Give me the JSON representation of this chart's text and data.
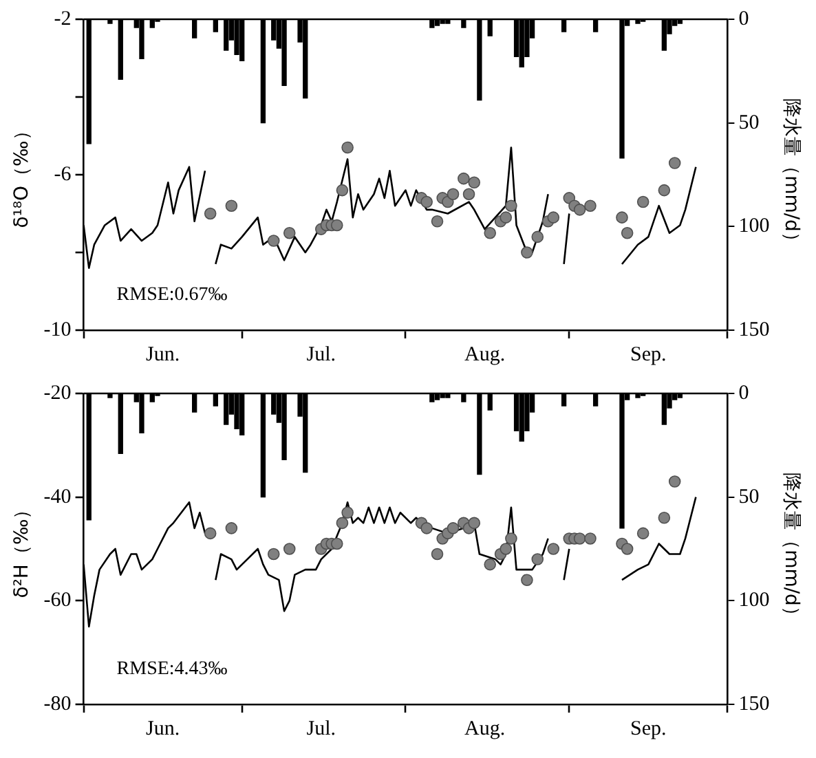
{
  "chart_data": [
    {
      "type": "line",
      "ylabel": "δ¹⁸O（‰）",
      "y2label": "降水量（mm/d）",
      "annotations": [
        "RMSE:0.67‰"
      ],
      "xlim": [
        "--06-01",
        "--10-01"
      ],
      "xticks": [
        {
          "value": "--06-01",
          "label": null
        },
        {
          "value": "--06-16",
          "label": "Jun."
        },
        {
          "value": "--07-01",
          "label": null
        },
        {
          "value": "--07-16",
          "label": "Jul."
        },
        {
          "value": "--08-01",
          "label": null
        },
        {
          "value": "--08-16",
          "label": "Aug."
        },
        {
          "value": "--09-01",
          "label": null
        },
        {
          "value": "--09-16",
          "label": "Sep."
        },
        {
          "value": "--10-01",
          "label": null
        }
      ],
      "ylim": [
        -10,
        -2
      ],
      "yticks": [
        -10,
        {
          "value": -8,
          "label": null
        },
        -6,
        {
          "value": -4,
          "label": null
        },
        -2
      ],
      "y2lim": [
        150,
        0
      ],
      "y2ticks": [
        0,
        50,
        100,
        150
      ],
      "line_style": "solid",
      "series": [
        {
          "type": "bar",
          "axis": "y2",
          "color": "#000000",
          "x": [
            "--06-02",
            "--06-06",
            "--06-08",
            "--06-11",
            "--06-12",
            "--06-14",
            "--06-15",
            "--06-22",
            "--06-26",
            "--06-28",
            "--06-29",
            "--06-30",
            "--07-01",
            "--07-05",
            "--07-07",
            "--07-08",
            "--07-09",
            "--07-12",
            "--07-13",
            "--08-06",
            "--08-07",
            "--08-08",
            "--08-09",
            "--08-12",
            "--08-15",
            "--08-17",
            "--08-22",
            "--08-23",
            "--08-24",
            "--08-25",
            "--08-31",
            "--09-06",
            "--09-11",
            "--09-12",
            "--09-14",
            "--09-15",
            "--09-19",
            "--09-20",
            "--09-21",
            "--09-22"
          ],
          "values": [
            60,
            2,
            29,
            4,
            19,
            4,
            1,
            9,
            6,
            15,
            10,
            17,
            20,
            50,
            10,
            14,
            32,
            11,
            38,
            4,
            3,
            2,
            2,
            4,
            39,
            8,
            18,
            23,
            18,
            9,
            6,
            6,
            67,
            3,
            2,
            1,
            15,
            7,
            3,
            2
          ]
        },
        {
          "color": "#000000",
          "x": [
            "--06-01",
            "--06-02",
            "--06-03",
            "--06-05",
            "--06-07",
            "--06-08",
            "--06-10",
            "--06-12",
            "--06-14",
            "--06-15",
            "--06-17",
            "--06-18",
            "--06-19",
            "--06-21",
            "--06-22",
            "--06-24",
            "--06-25",
            "--06-26",
            "--06-27",
            "--06-29",
            "--07-01",
            "--07-04",
            "--07-05",
            "--07-07",
            "--07-09",
            "--07-11",
            "--07-13",
            "--07-14",
            "--07-16",
            "--07-17",
            "--07-18",
            "--07-19",
            "--07-21",
            "--07-22",
            "--07-23",
            "--07-24",
            "--07-26",
            "--07-27",
            "--07-28",
            "--07-29",
            "--07-30",
            "--08-01",
            "--08-02",
            "--08-03",
            "--08-05",
            "--08-06",
            "--08-09",
            "--08-13",
            "--08-14",
            "--08-16",
            "--08-18",
            "--08-20",
            "--08-21",
            "--08-22",
            "--08-24",
            "--08-25",
            "--08-27",
            "--08-28",
            "--08-30",
            "--08-31",
            "--09-01",
            "--09-06",
            "--09-11",
            "--09-14",
            "--09-16",
            "--09-18",
            "--09-20",
            "--09-22",
            "--09-23",
            "--09-25"
          ],
          "values": [
            -7.3,
            -8.4,
            -7.8,
            -7.3,
            -7.1,
            -7.7,
            -7.4,
            -7.7,
            -7.5,
            -7.3,
            -6.2,
            -7.0,
            -6.4,
            -5.8,
            -7.2,
            -5.9,
            null,
            -8.3,
            -7.8,
            -7.9,
            -7.6,
            -7.1,
            -7.8,
            -7.6,
            -8.2,
            -7.6,
            -8.0,
            -7.8,
            -7.3,
            -6.9,
            -7.2,
            -6.7,
            -5.6,
            -7.1,
            -6.5,
            -6.9,
            -6.5,
            -6.1,
            -6.6,
            -5.9,
            -6.8,
            -6.4,
            -6.8,
            -6.4,
            -6.9,
            -6.9,
            -7.0,
            -6.7,
            -6.9,
            -7.4,
            -7.1,
            -6.8,
            -5.3,
            -7.3,
            -8.0,
            -8.0,
            -7.2,
            -6.5,
            null,
            -8.3,
            -7.0,
            null,
            -8.3,
            -7.8,
            -7.6,
            -6.8,
            -7.5,
            -7.3,
            -6.9,
            -5.8
          ]
        },
        {
          "type": "scatter",
          "marker": "circle",
          "color": "#808080",
          "x": [
            "--06-25",
            "--06-29",
            "--07-07",
            "--07-10",
            "--07-16",
            "--07-17",
            "--07-18",
            "--07-19",
            "--07-20",
            "--07-21",
            "--08-04",
            "--08-05",
            "--08-07",
            "--08-08",
            "--08-09",
            "--08-10",
            "--08-12",
            "--08-13",
            "--08-14",
            "--08-17",
            "--08-19",
            "--08-20",
            "--08-21",
            "--08-24",
            "--08-26",
            "--08-28",
            "--08-29",
            "--09-01",
            "--09-02",
            "--09-03",
            "--09-05",
            "--09-11",
            "--09-12",
            "--09-15",
            "--09-19",
            "--09-21"
          ],
          "values": [
            -7.0,
            -6.8,
            -7.7,
            -7.5,
            -7.4,
            -7.3,
            -7.3,
            -7.3,
            -6.4,
            -5.3,
            -6.6,
            -6.7,
            -7.2,
            -6.6,
            -6.7,
            -6.5,
            -6.1,
            -6.5,
            -6.2,
            -7.5,
            -7.2,
            -7.1,
            -6.8,
            -8.0,
            -7.6,
            -7.2,
            -7.1,
            -6.6,
            -6.8,
            -6.9,
            -6.8,
            -7.1,
            -7.5,
            -6.7,
            -6.4,
            -5.7
          ]
        }
      ]
    },
    {
      "type": "line",
      "ylabel": "δ²H（‰）",
      "y2label": "降水量（mm/d）",
      "annotations": [
        "RMSE:4.43‰"
      ],
      "xlim": [
        "--06-01",
        "--10-01"
      ],
      "xticks": [
        {
          "value": "--06-01",
          "label": null
        },
        {
          "value": "--06-16",
          "label": "Jun."
        },
        {
          "value": "--07-01",
          "label": null
        },
        {
          "value": "--07-16",
          "label": "Jul."
        },
        {
          "value": "--08-01",
          "label": null
        },
        {
          "value": "--08-16",
          "label": "Aug."
        },
        {
          "value": "--09-01",
          "label": null
        },
        {
          "value": "--09-16",
          "label": "Sep."
        },
        {
          "value": "--10-01",
          "label": null
        }
      ],
      "ylim": [
        -80,
        -20
      ],
      "yticks": [
        -80,
        -60,
        -40,
        -20
      ],
      "y2lim": [
        150,
        0
      ],
      "y2ticks": [
        0,
        50,
        100,
        150
      ],
      "line_style": "solid",
      "series": [
        {
          "type": "bar",
          "axis": "y2",
          "color": "#000000",
          "x": [
            "--06-02",
            "--06-06",
            "--06-08",
            "--06-11",
            "--06-12",
            "--06-14",
            "--06-15",
            "--06-22",
            "--06-26",
            "--06-28",
            "--06-29",
            "--06-30",
            "--07-01",
            "--07-05",
            "--07-07",
            "--07-08",
            "--07-09",
            "--07-12",
            "--07-13",
            "--08-06",
            "--08-07",
            "--08-08",
            "--08-09",
            "--08-12",
            "--08-15",
            "--08-17",
            "--08-22",
            "--08-23",
            "--08-24",
            "--08-25",
            "--08-31",
            "--09-06",
            "--09-11",
            "--09-12",
            "--09-14",
            "--09-15",
            "--09-19",
            "--09-20",
            "--09-21",
            "--09-22"
          ],
          "values": [
            61,
            2,
            29,
            4,
            19,
            4,
            1,
            9,
            6,
            15,
            10,
            17,
            20,
            50,
            10,
            14,
            32,
            11,
            38,
            4,
            3,
            2,
            2,
            4,
            39,
            8,
            18,
            23,
            18,
            9,
            6,
            6,
            65,
            3,
            2,
            1,
            15,
            7,
            3,
            2
          ]
        },
        {
          "color": "#000000",
          "x": [
            "--06-01",
            "--06-02",
            "--06-03",
            "--06-04",
            "--06-06",
            "--06-07",
            "--06-08",
            "--06-10",
            "--06-11",
            "--06-12",
            "--06-14",
            "--06-15",
            "--06-17",
            "--06-18",
            "--06-21",
            "--06-22",
            "--06-23",
            "--06-24",
            "--06-25",
            "--06-26",
            "--06-27",
            "--06-29",
            "--06-30",
            "--07-02",
            "--07-04",
            "--07-05",
            "--07-06",
            "--07-08",
            "--07-09",
            "--07-10",
            "--07-11",
            "--07-13",
            "--07-15",
            "--07-16",
            "--07-18",
            "--07-20",
            "--07-21",
            "--07-22",
            "--07-23",
            "--07-24",
            "--07-25",
            "--07-26",
            "--07-27",
            "--07-28",
            "--07-29",
            "--07-30",
            "--07-31",
            "--08-02",
            "--08-03",
            "--08-04",
            "--08-06",
            "--08-09",
            "--08-12",
            "--08-14",
            "--08-15",
            "--08-18",
            "--08-19",
            "--08-20",
            "--08-21",
            "--08-22",
            "--08-24",
            "--08-25",
            "--08-27",
            "--08-28",
            "--08-30",
            "--08-31",
            "--09-01",
            "--09-06",
            "--09-11",
            "--09-14",
            "--09-16",
            "--09-18",
            "--09-20",
            "--09-22",
            "--09-23",
            "--09-25"
          ],
          "values": [
            -53,
            -65,
            -59,
            -54,
            -51,
            -50,
            -55,
            -51,
            -51,
            -54,
            -52,
            -50,
            -46,
            -45,
            -41,
            -46,
            -43,
            -47,
            null,
            -56,
            -51,
            -52,
            -54,
            -52,
            -50,
            -53,
            -55,
            -56,
            -62,
            -60,
            -55,
            -54,
            -54,
            -52,
            -50,
            -45,
            -41,
            -45,
            -44,
            -45,
            -42,
            -45,
            -42,
            -45,
            -42,
            -45,
            -43,
            -45,
            -44,
            -45,
            -46,
            -47,
            -46,
            -45,
            -51,
            -52,
            -53,
            -51,
            -42,
            -54,
            -54,
            -54,
            -51,
            -48,
            null,
            -56,
            -50,
            null,
            -56,
            -54,
            -53,
            -49,
            -51,
            -51,
            -48,
            -40
          ]
        },
        {
          "type": "scatter",
          "marker": "circle",
          "color": "#808080",
          "x": [
            "--06-25",
            "--06-29",
            "--07-07",
            "--07-10",
            "--07-16",
            "--07-17",
            "--07-18",
            "--07-19",
            "--07-20",
            "--07-21",
            "--08-04",
            "--08-05",
            "--08-07",
            "--08-08",
            "--08-09",
            "--08-10",
            "--08-12",
            "--08-13",
            "--08-14",
            "--08-17",
            "--08-19",
            "--08-20",
            "--08-21",
            "--08-24",
            "--08-26",
            "--08-29",
            "--09-01",
            "--09-02",
            "--09-03",
            "--09-05",
            "--09-11",
            "--09-12",
            "--09-15",
            "--09-19",
            "--09-21"
          ],
          "values": [
            -47,
            -46,
            -51,
            -50,
            -50,
            -49,
            -49,
            -49,
            -45,
            -43,
            -45,
            -46,
            -51,
            -48,
            -47,
            -46,
            -45,
            -46,
            -45,
            -53,
            -51,
            -50,
            -48,
            -56,
            -52,
            -50,
            -48,
            -48,
            -48,
            -48,
            -49,
            -50,
            -47,
            -44,
            -37
          ]
        }
      ]
    }
  ]
}
